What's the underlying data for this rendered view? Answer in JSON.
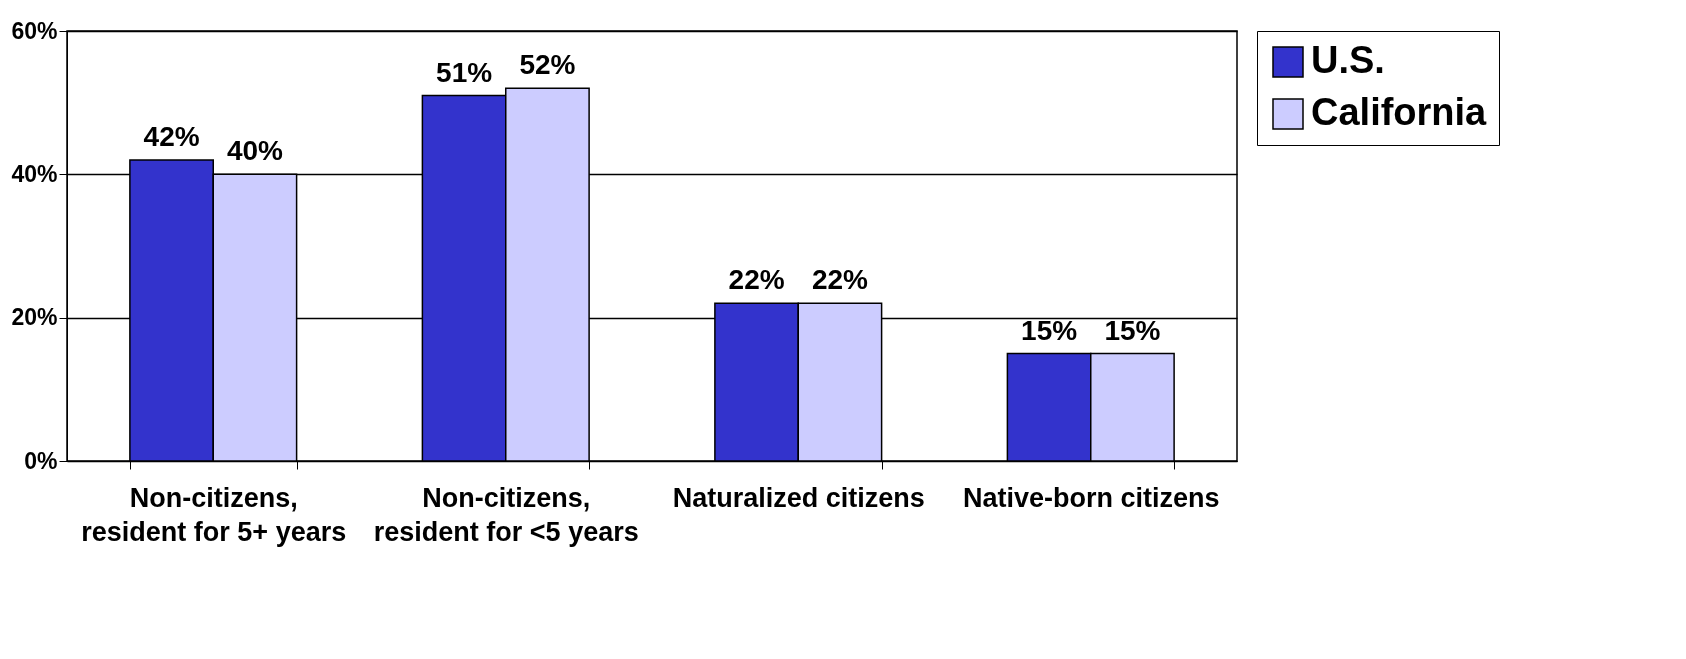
{
  "chart_data": {
    "type": "bar",
    "categories": [
      "Non-citizens, resident for 5+ years",
      "Non-citizens, resident for <5 years",
      "Naturalized citizens",
      "Native-born citizens"
    ],
    "series": [
      {
        "name": "U.S.",
        "color": "#3333cc",
        "values": [
          42,
          51,
          22,
          15
        ],
        "value_labels": [
          "42%",
          "51%",
          "22%",
          "15%"
        ]
      },
      {
        "name": "California",
        "color": "#ccccff",
        "values": [
          40,
          52,
          22,
          15
        ],
        "value_labels": [
          "40%",
          "52%",
          "22%",
          "15%"
        ]
      }
    ],
    "ylim": [
      0,
      60
    ],
    "yticks": [
      {
        "value": 0,
        "label": "0%"
      },
      {
        "value": 20,
        "label": "20%"
      },
      {
        "value": 40,
        "label": "40%"
      },
      {
        "value": 60,
        "label": "60%"
      }
    ],
    "grid": "y",
    "legend": "right"
  }
}
